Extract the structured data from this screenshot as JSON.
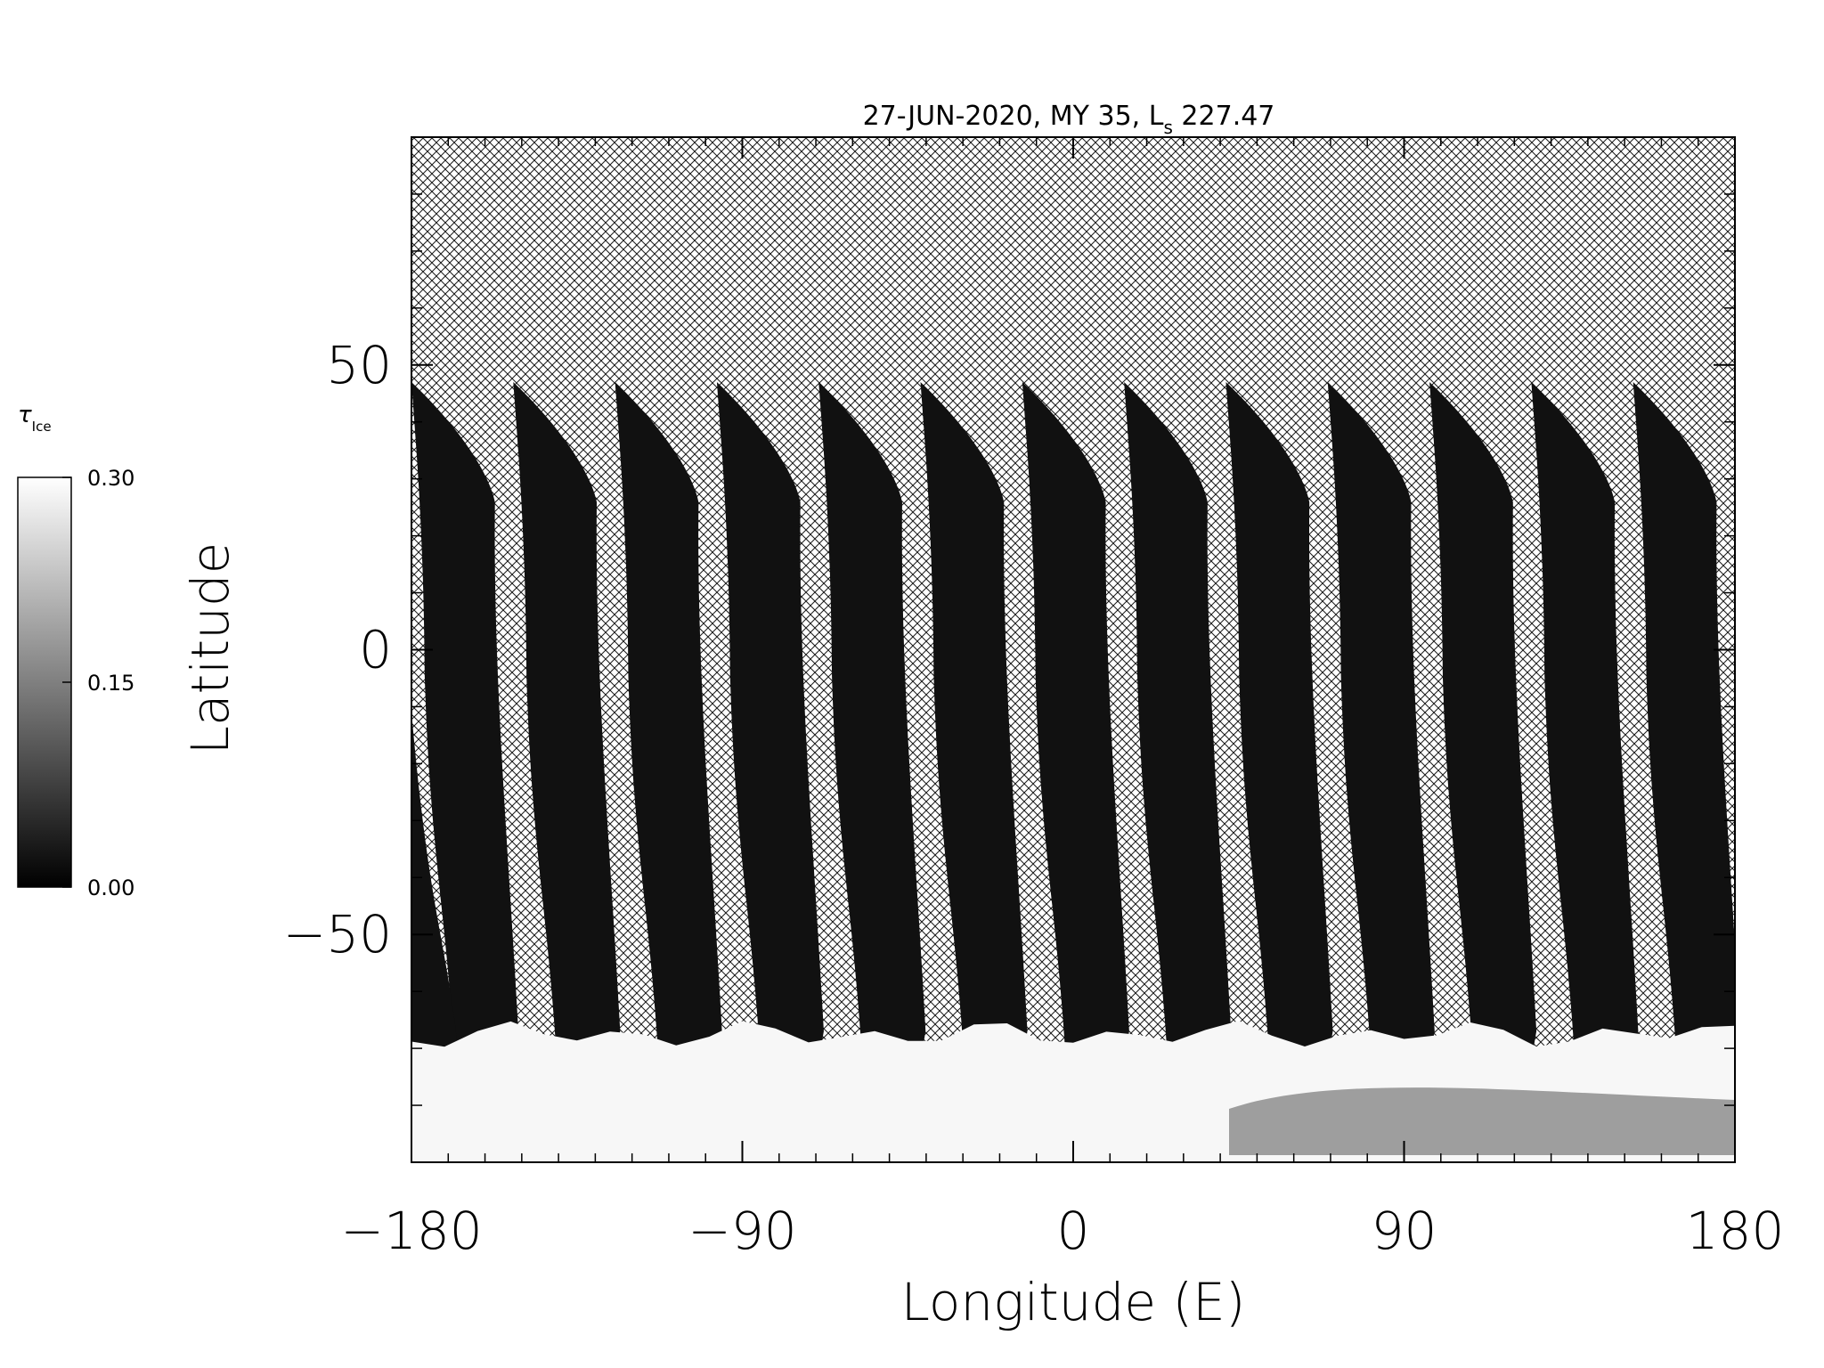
{
  "chart_data": {
    "type": "heatmap",
    "title": {
      "main": "27-JUN-2020, MY 35,  L",
      "sub": "s",
      "value": " 227.47"
    },
    "xlabel": "Longitude (E)",
    "ylabel": "Latitude",
    "xlim": [
      -180,
      180
    ],
    "ylim": [
      -90,
      90
    ],
    "xticks": [
      -180,
      -90,
      0,
      90,
      180
    ],
    "yticks": [
      -50,
      0,
      50
    ],
    "xtick_labels": [
      "−180",
      "−90",
      "0",
      "90",
      "180"
    ],
    "ytick_labels": [
      "−50",
      "0",
      "50"
    ],
    "missing_data_pattern": "crosshatch",
    "swaths": {
      "count": 13,
      "north_edge_lat": 47,
      "south_edge_lat": -67,
      "value": 0.02
    },
    "south_polar_hood": {
      "lat_from": -90,
      "lat_to": -66,
      "value": 0.29
    },
    "colorbar": {
      "label": "τ",
      "label_sub": "Ice",
      "min": 0.0,
      "max": 0.3,
      "tick_values": [
        0.3,
        0.15,
        0.0
      ],
      "tick_labels": [
        "0.30",
        "0.15",
        "0.00"
      ],
      "colormap": "grayscale"
    }
  }
}
